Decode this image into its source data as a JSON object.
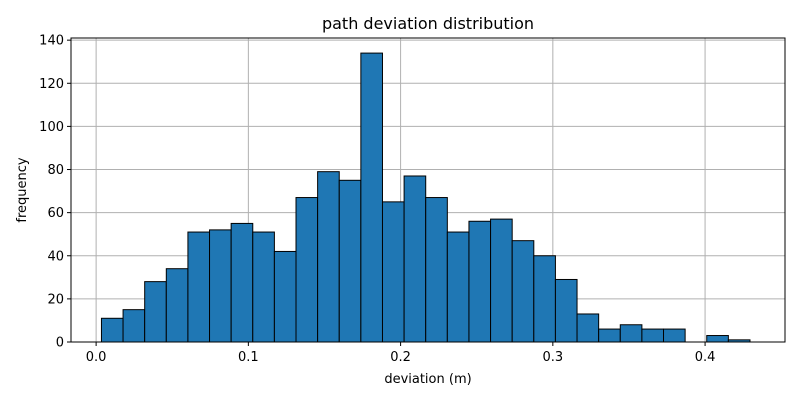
{
  "chart_data": {
    "type": "bar",
    "title": "path deviation distribution",
    "xlabel": "deviation (m)",
    "ylabel": "frequency",
    "xlim": [
      -0.0165,
      0.4525
    ],
    "ylim": [
      0,
      141
    ],
    "xticks": [
      0.0,
      0.1,
      0.2,
      0.3,
      0.4
    ],
    "xtick_labels": [
      "0.0",
      "0.1",
      "0.2",
      "0.3",
      "0.4"
    ],
    "yticks": [
      0,
      20,
      40,
      60,
      80,
      100,
      120,
      140
    ],
    "ytick_labels": [
      "0",
      "20",
      "40",
      "60",
      "80",
      "100",
      "120",
      "140"
    ],
    "grid": true,
    "bar_color": "#1f77b4",
    "edge_color": "#000000",
    "bin_edges": [
      0.0035,
      0.0177,
      0.0319,
      0.0461,
      0.0603,
      0.0745,
      0.0887,
      0.1029,
      0.1171,
      0.1313,
      0.1455,
      0.1597,
      0.1739,
      0.1881,
      0.2023,
      0.2165,
      0.2307,
      0.2449,
      0.2591,
      0.2733,
      0.2875,
      0.3017,
      0.3159,
      0.3301,
      0.3443,
      0.3585,
      0.3727,
      0.3869,
      0.4011,
      0.4153,
      0.4295
    ],
    "values": [
      11,
      15,
      28,
      34,
      51,
      52,
      55,
      51,
      42,
      67,
      79,
      75,
      134,
      65,
      77,
      67,
      51,
      56,
      57,
      47,
      40,
      29,
      13,
      6,
      8,
      6,
      6,
      0,
      3,
      1
    ]
  }
}
